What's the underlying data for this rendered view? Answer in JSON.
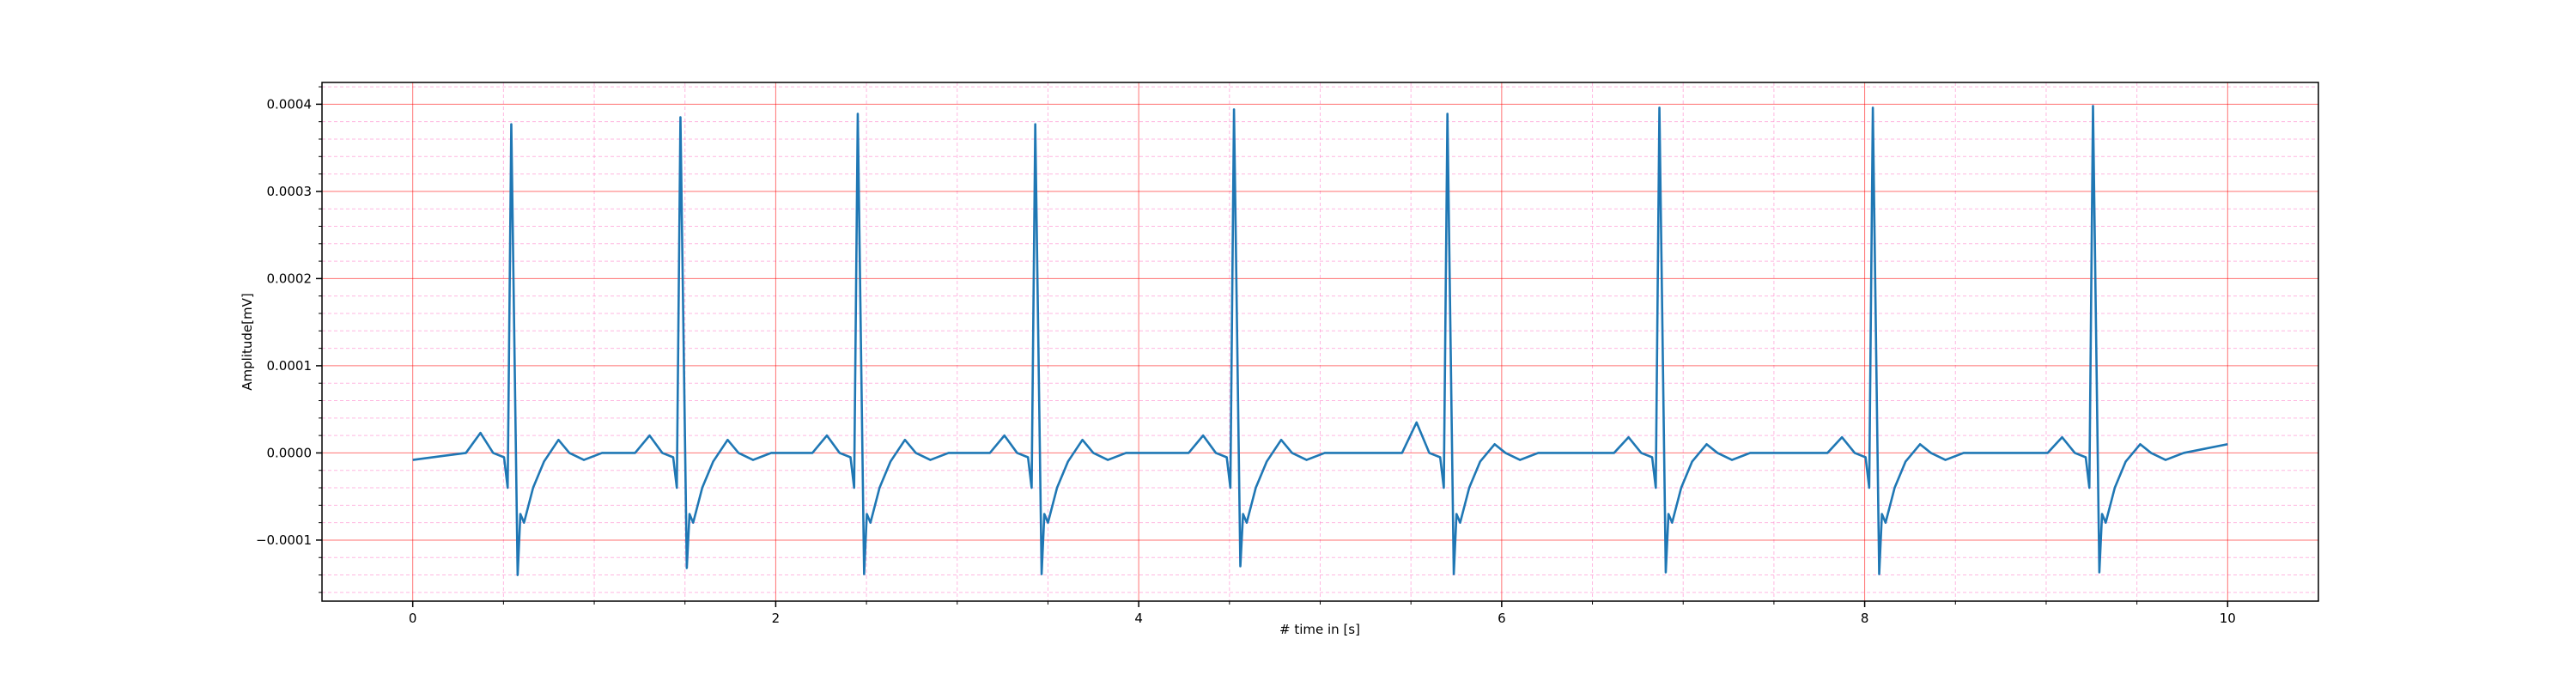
{
  "chart_data": {
    "type": "line",
    "xlabel": "# time in [s]",
    "ylabel": "Amplitude[mV]",
    "color": "#1f77b4",
    "grid": true,
    "grid_color": "#ff0000",
    "minor_grid_color": "#ff88cc",
    "xlim": [
      -0.5,
      10.5
    ],
    "ylim": [
      -0.00017,
      0.000425
    ],
    "xticks": [
      0,
      2,
      4,
      6,
      8,
      10
    ],
    "yticks": [
      {
        "value": -0.0001,
        "label": "−0.0001"
      },
      {
        "value": 0,
        "label": "0.0000"
      },
      {
        "value": 0.0001,
        "label": "0.0001"
      },
      {
        "value": 0.0002,
        "label": "0.0002"
      },
      {
        "value": 0.0003,
        "label": "0.0003"
      },
      {
        "value": 0.0004,
        "label": "0.0004"
      }
    ],
    "xminorticks": [
      0.5,
      1,
      1.5,
      2.5,
      3,
      3.5,
      4.5,
      5,
      5.5,
      6.5,
      7,
      7.5,
      8.5,
      9,
      9.5
    ],
    "yminorticks": [
      -0.00016,
      -0.00014,
      -0.00012,
      -8e-05,
      -6e-05,
      -4e-05,
      -2e-05,
      2e-05,
      4e-05,
      6e-05,
      8e-05,
      0.00012,
      0.00014,
      0.00016,
      0.00018,
      0.00022,
      0.00024,
      0.00026,
      0.00028,
      0.00032,
      0.00034,
      0.00036,
      0.00038,
      0.00042
    ],
    "x": [
      0,
      0.293,
      0.373,
      0.443,
      0.503,
      0.523,
      0.543,
      0.578,
      0.593,
      0.613,
      0.663,
      0.723,
      0.803,
      0.863,
      0.943,
      1.043,
      1.225,
      1.305,
      1.375,
      1.435,
      1.455,
      1.475,
      1.51,
      1.525,
      1.545,
      1.595,
      1.655,
      1.735,
      1.795,
      1.875,
      1.975,
      2.202,
      2.282,
      2.352,
      2.412,
      2.432,
      2.452,
      2.487,
      2.502,
      2.522,
      2.572,
      2.632,
      2.712,
      2.772,
      2.852,
      2.952,
      3.18,
      3.26,
      3.33,
      3.39,
      3.41,
      3.43,
      3.465,
      3.48,
      3.5,
      3.55,
      3.61,
      3.69,
      3.75,
      3.83,
      3.93,
      4.275,
      4.355,
      4.425,
      4.485,
      4.505,
      4.525,
      4.56,
      4.575,
      4.595,
      4.645,
      4.705,
      4.785,
      4.845,
      4.925,
      5.025,
      5.451,
      5.531,
      5.601,
      5.661,
      5.681,
      5.701,
      5.736,
      5.751,
      5.771,
      5.821,
      5.881,
      5.961,
      6.021,
      6.101,
      6.201,
      6.619,
      6.699,
      6.769,
      6.829,
      6.849,
      6.869,
      6.904,
      6.919,
      6.939,
      6.989,
      7.049,
      7.129,
      7.189,
      7.269,
      7.369,
      7.795,
      7.875,
      7.945,
      8.005,
      8.025,
      8.045,
      8.08,
      8.095,
      8.115,
      8.165,
      8.225,
      8.305,
      8.365,
      8.445,
      8.545,
      9.008,
      9.088,
      9.158,
      9.218,
      9.238,
      9.258,
      9.293,
      9.308,
      9.328,
      9.378,
      9.438,
      9.518,
      9.578,
      9.658,
      9.758,
      10
    ],
    "values": [
      -8e-06,
      0,
      2.3e-05,
      0,
      -5e-06,
      -4e-05,
      0.000377,
      -0.00014,
      -7e-05,
      -8e-05,
      -4e-05,
      -1e-05,
      1.5e-05,
      0,
      -8e-06,
      0,
      0,
      2e-05,
      0,
      -5e-06,
      -4e-05,
      0.000385,
      -0.000132,
      -7e-05,
      -8e-05,
      -4e-05,
      -1e-05,
      1.5e-05,
      0,
      -8e-06,
      0,
      0,
      2e-05,
      0,
      -5e-06,
      -4e-05,
      0.000389,
      -0.000139,
      -7e-05,
      -8e-05,
      -4e-05,
      -1e-05,
      1.5e-05,
      0,
      -8e-06,
      0,
      0,
      2e-05,
      0,
      -5e-06,
      -4e-05,
      0.000377,
      -0.000139,
      -7e-05,
      -8e-05,
      -4e-05,
      -1e-05,
      1.5e-05,
      0,
      -8e-06,
      0,
      0,
      2e-05,
      0,
      -5e-06,
      -4e-05,
      0.000394,
      -0.00013,
      -7e-05,
      -8e-05,
      -4e-05,
      -1e-05,
      1.5e-05,
      0,
      -8e-06,
      0,
      0,
      3.5e-05,
      0,
      -5e-06,
      -4e-05,
      0.000389,
      -0.000139,
      -7e-05,
      -8e-05,
      -4e-05,
      -1e-05,
      1e-05,
      0,
      -8e-06,
      0,
      0,
      1.8e-05,
      0,
      -5e-06,
      -4e-05,
      0.000396,
      -0.000137,
      -7e-05,
      -8e-05,
      -4e-05,
      -1e-05,
      1e-05,
      0,
      -8e-06,
      0,
      0,
      1.8e-05,
      0,
      -5e-06,
      -4e-05,
      0.000396,
      -0.000139,
      -7e-05,
      -8e-05,
      -4e-05,
      -1e-05,
      1e-05,
      0,
      -8e-06,
      0,
      0,
      1.8e-05,
      0,
      -5e-06,
      -4e-05,
      0.000398,
      -0.000137,
      -7e-05,
      -8e-05,
      -4e-05,
      -1e-05,
      1e-05,
      0,
      -8e-06,
      0,
      1e-05
    ]
  }
}
